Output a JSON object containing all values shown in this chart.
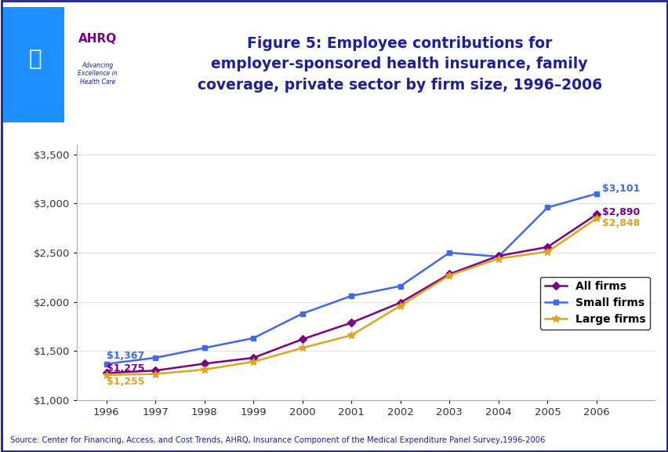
{
  "years": [
    1996,
    1997,
    1998,
    1999,
    2000,
    2001,
    2002,
    2003,
    2004,
    2005,
    2006
  ],
  "all_firms": [
    1275,
    1300,
    1370,
    1430,
    1619,
    1787,
    1992,
    2283,
    2467,
    2558,
    2890
  ],
  "small_firms": [
    1367,
    1430,
    1530,
    1630,
    1880,
    2060,
    2160,
    2500,
    2460,
    2960,
    3101
  ],
  "large_firms": [
    1255,
    1265,
    1310,
    1390,
    1530,
    1660,
    1960,
    2270,
    2440,
    2510,
    2848
  ],
  "all_firms_color": "#7B0082",
  "small_firms_color": "#4169E1",
  "large_firms_color": "#DAA520",
  "start_label_all": "$1,275",
  "start_label_small": "$1,367",
  "start_label_large": "$1,255",
  "end_label_all": "$2,890",
  "end_label_small": "$3,101",
  "end_label_large": "$2,848",
  "legend_labels": [
    "All firms",
    "Small firms",
    "Large firms"
  ],
  "title": "Figure 5: Employee contributions for\nemployer-sponsored health insurance, family\ncoverage, private sector by firm size, 1996–2006",
  "source_text": "Source: Center for Financing, Access, and Cost Trends, AHRQ, Insurance Component of the Medical Expenditure Panel Survey,1996-2006",
  "ylim": [
    1000,
    3600
  ],
  "yticks": [
    1000,
    1500,
    2000,
    2500,
    3000,
    3500
  ],
  "bg_color": "#FFFFFF",
  "border_color": "#1F1F8F",
  "title_color": "#1F1F8F",
  "divider_color": "#2B2B8F",
  "header_bg": "#FFFFFF",
  "logo_bg": "#4169E1"
}
